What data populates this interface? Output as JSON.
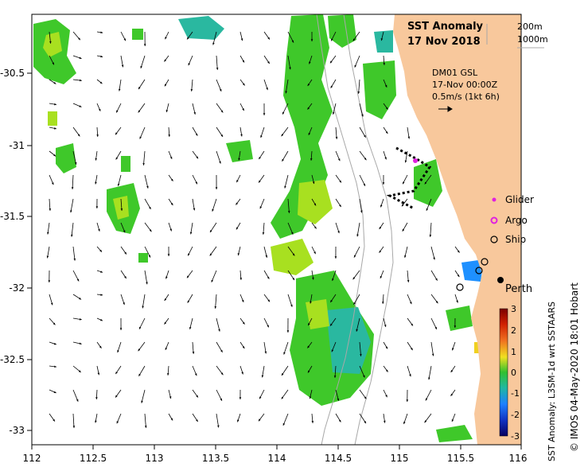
{
  "title": {
    "line1": "SST Anomaly",
    "line2": "17 Nov 2018"
  },
  "depth_contours": {
    "c1": "200m",
    "c2": "1000m"
  },
  "current_info": {
    "source": "DM01 GSL",
    "time": "17-Nov 00:00Z",
    "scale": "0.5m/s (1kt 6h)"
  },
  "legend": {
    "glider": "Glider",
    "argo": "Argo",
    "ship": "Ship"
  },
  "city": "Perth",
  "colorbar": {
    "label": "SST Anomaly: L3SM-1d wrt SSTAARS",
    "ticks": [
      "3",
      "2",
      "1",
      "0",
      "-1",
      "-2",
      "-3"
    ]
  },
  "credit": "© IMOS 04-May-2020 18:01 Hobart",
  "axes": {
    "x_ticks": [
      "112",
      "112.5",
      "113",
      "113.5",
      "114",
      "114.5",
      "115",
      "115.5",
      "116"
    ],
    "y_ticks": [
      "-30.5",
      "-31",
      "-31.5",
      "-32",
      "-32.5",
      "-33"
    ]
  },
  "colors": {
    "land": "#f8c89c",
    "anomaly_green": "#3fc82a",
    "anomaly_yellow": "#a8e020",
    "anomaly_teal": "#2ab8a0",
    "glider": "#e020e0",
    "argo": "#e020e0"
  }
}
